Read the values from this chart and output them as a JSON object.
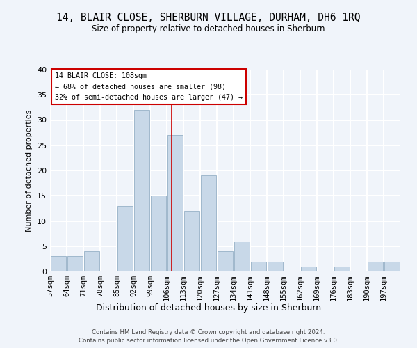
{
  "title": "14, BLAIR CLOSE, SHERBURN VILLAGE, DURHAM, DH6 1RQ",
  "subtitle": "Size of property relative to detached houses in Sherburn",
  "xlabel": "Distribution of detached houses by size in Sherburn",
  "ylabel": "Number of detached properties",
  "bin_labels": [
    "57sqm",
    "64sqm",
    "71sqm",
    "78sqm",
    "85sqm",
    "92sqm",
    "99sqm",
    "106sqm",
    "113sqm",
    "120sqm",
    "127sqm",
    "134sqm",
    "141sqm",
    "148sqm",
    "155sqm",
    "162sqm",
    "169sqm",
    "176sqm",
    "183sqm",
    "190sqm",
    "197sqm"
  ],
  "bin_edges": [
    57,
    64,
    71,
    78,
    85,
    92,
    99,
    106,
    113,
    120,
    127,
    134,
    141,
    148,
    155,
    162,
    169,
    176,
    183,
    190,
    197,
    204
  ],
  "counts": [
    3,
    3,
    4,
    0,
    13,
    32,
    15,
    27,
    12,
    19,
    4,
    6,
    2,
    2,
    0,
    1,
    0,
    1,
    0,
    2,
    2
  ],
  "bar_color": "#c8d8e8",
  "bar_edge_color": "#a0b8cc",
  "vline_x": 108,
  "vline_color": "#cc0000",
  "annotation_title": "14 BLAIR CLOSE: 108sqm",
  "annotation_line1": "← 68% of detached houses are smaller (98)",
  "annotation_line2": "32% of semi-detached houses are larger (47) →",
  "annotation_box_color": "#ffffff",
  "annotation_box_edge": "#cc0000",
  "ylim": [
    0,
    40
  ],
  "yticks": [
    0,
    5,
    10,
    15,
    20,
    25,
    30,
    35,
    40
  ],
  "footer1": "Contains HM Land Registry data © Crown copyright and database right 2024.",
  "footer2": "Contains public sector information licensed under the Open Government Licence v3.0.",
  "bg_color": "#f0f4fa",
  "grid_color": "#ffffff"
}
